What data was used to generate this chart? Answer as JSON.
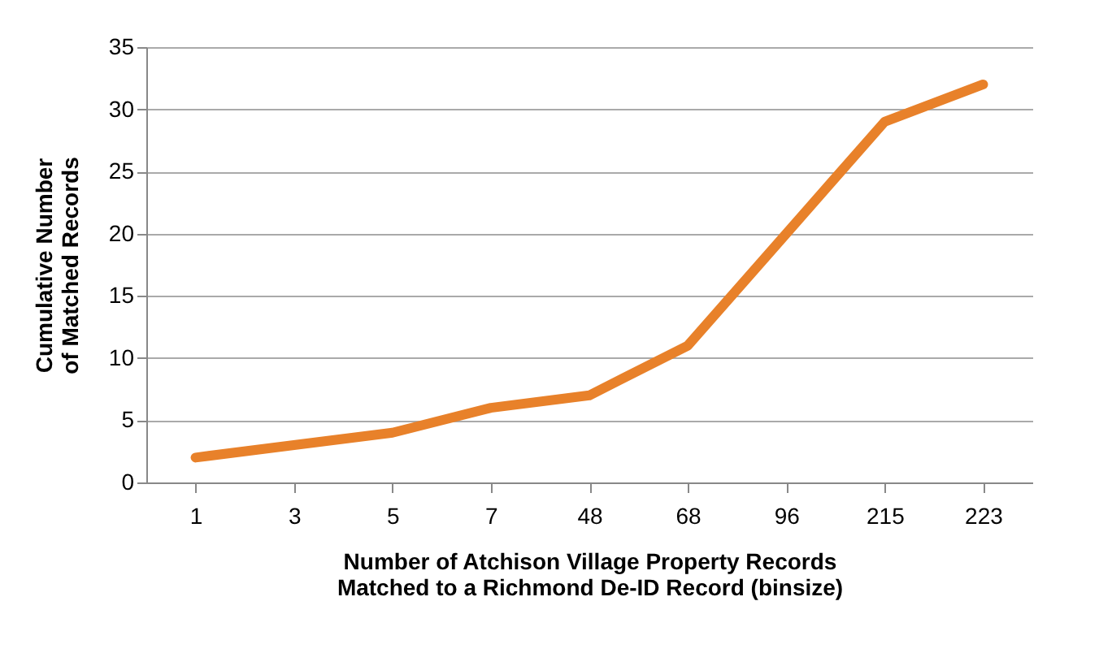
{
  "chart_data": {
    "type": "line",
    "xlabel": "Number of Atchison Village Property Records\nMatched to a Richmond De-ID Record (binsize)",
    "ylabel": "Cumulative Number\nof Matched Records",
    "categories": [
      "1",
      "3",
      "5",
      "7",
      "48",
      "68",
      "96",
      "215",
      "223"
    ],
    "series": [
      {
        "color": "#e8812a",
        "values": [
          2,
          3,
          4,
          6,
          7,
          11,
          20,
          29,
          32
        ]
      }
    ],
    "ylim": [
      0,
      35
    ],
    "yticks": [
      0,
      5,
      10,
      15,
      20,
      25,
      30,
      35
    ],
    "grid": "y",
    "marker": "none",
    "line_style": "solid"
  }
}
